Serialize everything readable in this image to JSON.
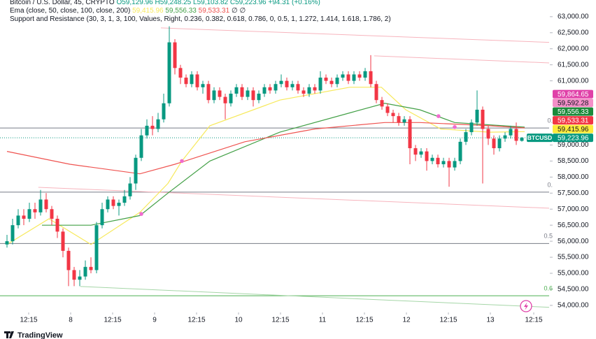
{
  "chart_data": {
    "type": "candlestick",
    "legend": {
      "symbol": "Bitcoin / U.S. Dollar, 45, CRYPTO",
      "ohlc": [
        "O59,129.96",
        "H59,248.25",
        "L59,103.82",
        "C59,223.96",
        "+94.31 (+0.16%)"
      ],
      "ema_name": "Ema (close, 50, close, 100, close, 200)",
      "ema_values": [
        "59,415.96",
        "59,556.33",
        "59,533.31",
        "∅",
        "∅"
      ],
      "sr_name": "Support and Resistance (30, 3, 1, 3, 100, Values, Right, 0.236, 0.382, 0.618, 0.786, 0, 0.5, 1, 1.272, 1.414, 1.618, 1.786, 2)"
    },
    "up_color": "#089981",
    "down_color": "#f23645",
    "open": [
      55900,
      56000,
      56500,
      56800,
      56700,
      57000,
      56900,
      57300,
      57000,
      56700,
      56300,
      55700,
      55100,
      54800,
      54900,
      55200,
      55100,
      56500,
      57000,
      57300,
      57100,
      57200,
      57400,
      57800,
      58600,
      59300,
      59600,
      59500,
      59800,
      60300,
      62200,
      61400,
      61100,
      60900,
      61200,
      60800,
      60900,
      60400,
      60700,
      60500,
      60300,
      60600,
      60800,
      60500,
      60700,
      60400,
      60600,
      60800,
      60700,
      60900,
      61000,
      60800,
      60900,
      60700,
      60600,
      60800,
      60700,
      61100,
      61000,
      60900,
      61100,
      61200,
      61000,
      61200,
      61100,
      61300,
      60900,
      60400,
      60200,
      60000,
      59900,
      59700,
      59800,
      58900,
      58700,
      58800,
      58500,
      58600,
      58400,
      58500,
      58300,
      58500,
      59100,
      59400,
      59700,
      60100,
      59500,
      59200,
      58900,
      59200,
      59300,
      59500,
      59129.96
    ],
    "high": [
      56200,
      56700,
      57000,
      57000,
      57200,
      57200,
      57600,
      57500,
      57100,
      56800,
      56400,
      55800,
      55200,
      55100,
      55400,
      55500,
      56600,
      57200,
      57400,
      57400,
      57300,
      57600,
      58000,
      58700,
      59500,
      59800,
      59900,
      60000,
      60600,
      62700,
      62300,
      61500,
      61200,
      61300,
      61300,
      61000,
      61000,
      60800,
      60800,
      60600,
      60700,
      60900,
      60900,
      60800,
      60800,
      60700,
      60900,
      60900,
      61000,
      61200,
      61100,
      61000,
      61000,
      60800,
      60900,
      60900,
      61300,
      61200,
      61100,
      61200,
      61300,
      61300,
      61300,
      61300,
      61400,
      61800,
      61000,
      60500,
      60300,
      60100,
      60000,
      59900,
      59900,
      59000,
      58900,
      58900,
      58700,
      58700,
      58600,
      58600,
      58600,
      59200,
      59500,
      59800,
      60700,
      60200,
      59600,
      59300,
      59300,
      59400,
      59600,
      59700,
      59248.25
    ],
    "low": [
      55800,
      55900,
      56400,
      56500,
      56600,
      56700,
      56800,
      56900,
      56500,
      56100,
      55500,
      54600,
      54600,
      54600,
      54800,
      55000,
      55000,
      56400,
      56900,
      57000,
      56800,
      57100,
      57300,
      57600,
      58500,
      59200,
      59300,
      59400,
      59700,
      60200,
      61200,
      60900,
      60800,
      60800,
      60700,
      60600,
      60300,
      60300,
      60400,
      59800,
      60200,
      60500,
      60400,
      60400,
      60200,
      60300,
      60500,
      60600,
      60600,
      60800,
      60700,
      60700,
      60600,
      60500,
      60500,
      60600,
      60600,
      60900,
      60800,
      60800,
      61000,
      60900,
      60900,
      61000,
      61000,
      60800,
      60300,
      60100,
      59900,
      59700,
      59600,
      59600,
      58400,
      58500,
      58600,
      58200,
      58400,
      58300,
      58300,
      57700,
      58200,
      58400,
      59000,
      59300,
      59600,
      57800,
      59000,
      58700,
      58800,
      59100,
      59200,
      59000,
      59103.82
    ],
    "close": [
      56000,
      56500,
      56800,
      56700,
      57000,
      56900,
      57300,
      57000,
      56700,
      56300,
      55700,
      55100,
      54800,
      54900,
      55200,
      55100,
      56500,
      57000,
      57300,
      57100,
      57200,
      57400,
      57800,
      58600,
      59300,
      59600,
      59500,
      59800,
      60300,
      62200,
      61400,
      61100,
      60900,
      61200,
      60800,
      60900,
      60400,
      60700,
      60500,
      60300,
      60600,
      60800,
      60500,
      60700,
      60400,
      60600,
      60800,
      60700,
      60900,
      61000,
      60800,
      60900,
      60700,
      60600,
      60800,
      60700,
      61100,
      61000,
      60900,
      61100,
      61200,
      61000,
      61200,
      61100,
      61300,
      60900,
      60400,
      60200,
      60000,
      59900,
      59700,
      59800,
      58900,
      58700,
      58800,
      58500,
      58600,
      58400,
      58500,
      58300,
      58500,
      59100,
      59400,
      59700,
      60100,
      59500,
      59200,
      58900,
      59200,
      59300,
      59500,
      59130,
      59223.96
    ],
    "overlays": [
      {
        "color": "#f7e95c",
        "x": [
          0,
          7.5,
          15,
          23.75,
          28.75,
          31.25,
          36.25,
          48.75,
          61.25,
          66.9,
          71.25,
          77.5,
          86.25,
          92.5
        ],
        "values": [
          55900,
          56700,
          55900,
          56900,
          57800,
          58500,
          59600,
          60400,
          60800,
          60800,
          60100,
          59500,
          59400,
          59415.96
        ]
      },
      {
        "color": "#43a047",
        "x": [
          6.25,
          15,
          23.75,
          28.75,
          36.25,
          48.75,
          61.25,
          67.5,
          73.75,
          80,
          92.5
        ],
        "values": [
          56500,
          56500,
          56800,
          57500,
          58500,
          59400,
          60000,
          60300,
          60100,
          59700,
          59556.33
        ]
      },
      {
        "color": "#ef5350",
        "x": [
          0,
          11.25,
          23.75,
          30,
          42.5,
          55,
          67.5,
          73.75,
          86.25,
          92.5
        ],
        "values": [
          58800,
          58400,
          58100,
          58400,
          59100,
          59500,
          59700,
          59700,
          59600,
          59533.31
        ]
      }
    ],
    "markers": {
      "color": "#f06ccf",
      "x": [
        24,
        31.25,
        77.1,
        80
      ],
      "values": [
        56850,
        58500,
        59900,
        59560
      ]
    },
    "trend_lines": [
      {
        "color": "#f7b4bd",
        "x": [
          27.5,
          96.875
        ],
        "values": [
          62650,
          62200
        ]
      },
      {
        "color": "#f7b4bd",
        "x": [
          65.6,
          96.875
        ],
        "values": [
          61780,
          61560
        ]
      },
      {
        "color": "#f7b4bd",
        "x": [
          5.6,
          96.875
        ],
        "values": [
          57680,
          57030
        ]
      },
      {
        "color": "#a5d6a7",
        "x": [
          13.1,
          96.875
        ],
        "values": [
          54590,
          53940
        ]
      }
    ],
    "levels": [
      {
        "value": 59530,
        "label": "0.",
        "color": "#787b86"
      },
      {
        "value": 57530,
        "label": "0.",
        "color": "#787b86"
      },
      {
        "value": 55930,
        "label": "0.5",
        "color": "#787b86"
      },
      {
        "value": 54300,
        "label": "0.6",
        "color": "#4caf50"
      }
    ],
    "badges": [
      {
        "value": 59864.65,
        "label": "59,864.65",
        "color": "#e040a8",
        "text_color": "#ffffff"
      },
      {
        "value": 59592.28,
        "label": "59,592.28",
        "color": "#f48fc8",
        "text_color": "#131722"
      },
      {
        "value": 59556.33,
        "label": "59,556.33",
        "color": "#1b8a3a",
        "text_color": "#ffffff"
      },
      {
        "value": 59533.31,
        "label": "59,533.31",
        "color": "#f23645",
        "text_color": "#ffffff"
      },
      {
        "value": 59415.96,
        "label": "59,415.96",
        "color": "#ffeb3b",
        "text_color": "#131722"
      },
      {
        "value": 59223.96,
        "label": "59,223.96",
        "symbol": "BTCUSD",
        "color": "#089981",
        "text_color": "#ffffff"
      }
    ],
    "xlim": [
      -1.25,
      96.875
    ],
    "ylim": [
      53780,
      63520
    ],
    "xticks": [
      {
        "value": 3.875,
        "label": "12:15"
      },
      {
        "value": 11.375,
        "label": "8"
      },
      {
        "value": 18.875,
        "label": "12:15"
      },
      {
        "value": 26.375,
        "label": "9"
      },
      {
        "value": 33.875,
        "label": "12:15"
      },
      {
        "value": 41.375,
        "label": "10"
      },
      {
        "value": 48.875,
        "label": "12:15"
      },
      {
        "value": 56.375,
        "label": "11"
      },
      {
        "value": 63.875,
        "label": "12:15"
      },
      {
        "value": 71.375,
        "label": "12"
      },
      {
        "value": 78.875,
        "label": "12:15"
      },
      {
        "value": 86.375,
        "label": "13"
      },
      {
        "value": 94.125,
        "label": "12:15"
      }
    ],
    "yticks": [
      {
        "value": 63000,
        "label": "63,000.00"
      },
      {
        "value": 62500,
        "label": "62,500.00"
      },
      {
        "value": 62000,
        "label": "62,000.00"
      },
      {
        "value": 61500,
        "label": "61,500.00"
      },
      {
        "value": 61000,
        "label": "61,000.00"
      },
      {
        "value": 59000,
        "label": "59,000.00"
      },
      {
        "value": 58500,
        "label": "58,500.00"
      },
      {
        "value": 58000,
        "label": "58,000.00"
      },
      {
        "value": 57500,
        "label": "57,500.00"
      },
      {
        "value": 57000,
        "label": "57,000.00"
      },
      {
        "value": 56500,
        "label": "56,500.00"
      },
      {
        "value": 56000,
        "label": "56,000.00"
      },
      {
        "value": 55500,
        "label": "55,500.00"
      },
      {
        "value": 55000,
        "label": "55,000.00"
      },
      {
        "value": 54500,
        "label": "54,500.00"
      },
      {
        "value": 54000,
        "label": "54,000.00"
      }
    ],
    "branding": "TradingView"
  }
}
